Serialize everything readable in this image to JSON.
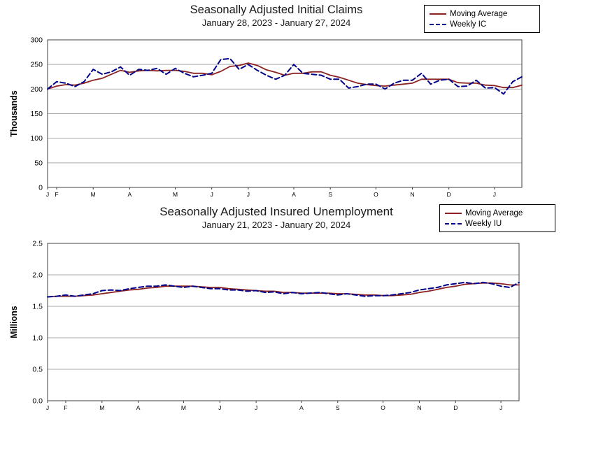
{
  "page": {
    "background": "#ffffff"
  },
  "chart_data": [
    {
      "type": "line",
      "title": "Seasonally Adjusted Initial Claims",
      "subtitle": "January 28, 2023 - January 27, 2024",
      "ylabel": "Thousands",
      "ylim": [
        0,
        300
      ],
      "yticks": [
        0,
        50,
        100,
        150,
        200,
        250,
        300
      ],
      "ytick_labels": [
        "0",
        "50",
        "100",
        "150",
        "200",
        "250",
        "300"
      ],
      "x_ticks": [
        {
          "label": "J",
          "week": 0
        },
        {
          "label": "F",
          "week": 1
        },
        {
          "label": "M",
          "week": 5
        },
        {
          "label": "A",
          "week": 9
        },
        {
          "label": "M",
          "week": 14
        },
        {
          "label": "J",
          "week": 18
        },
        {
          "label": "J",
          "week": 22
        },
        {
          "label": "A",
          "week": 27
        },
        {
          "label": "S",
          "week": 31
        },
        {
          "label": "O",
          "week": 36
        },
        {
          "label": "N",
          "week": 40
        },
        {
          "label": "D",
          "week": 44
        },
        {
          "label": "J",
          "week": 49
        }
      ],
      "grid": "horizontal",
      "legend_position": "top-right",
      "series": [
        {
          "name": "Moving Average",
          "color": "#8b2323",
          "style": "solid",
          "values": [
            200,
            206,
            209,
            208,
            212,
            218,
            222,
            230,
            238,
            234,
            237,
            238,
            237,
            238,
            238,
            236,
            232,
            232,
            229,
            236,
            246,
            248,
            253,
            248,
            239,
            234,
            228,
            232,
            232,
            235,
            235,
            228,
            224,
            218,
            212,
            209,
            207,
            206,
            208,
            210,
            212,
            220,
            220,
            220,
            220,
            213,
            212,
            212,
            208,
            207,
            203,
            203,
            208
          ]
        },
        {
          "name": "Weekly IC",
          "color": "#00008b",
          "style": "dashed",
          "values": [
            200,
            215,
            212,
            205,
            215,
            240,
            230,
            235,
            245,
            228,
            240,
            238,
            242,
            230,
            242,
            232,
            225,
            228,
            232,
            260,
            262,
            240,
            250,
            238,
            228,
            220,
            228,
            250,
            232,
            230,
            228,
            220,
            220,
            202,
            205,
            210,
            210,
            200,
            212,
            218,
            218,
            232,
            210,
            218,
            220,
            205,
            206,
            218,
            202,
            203,
            190,
            215,
            225
          ]
        }
      ]
    },
    {
      "type": "line",
      "title": "Seasonally Adjusted Insured Unemployment",
      "subtitle": "January 21, 2023 - January 20, 2024",
      "ylabel": "Millions",
      "ylim": [
        0,
        2.5
      ],
      "yticks": [
        0,
        0.5,
        1.0,
        1.5,
        2.0,
        2.5
      ],
      "ytick_labels": [
        "0.0",
        "0.5",
        "1.0",
        "1.5",
        "2.0",
        "2.5"
      ],
      "x_ticks": [
        {
          "label": "J",
          "week": 0
        },
        {
          "label": "F",
          "week": 2
        },
        {
          "label": "M",
          "week": 6
        },
        {
          "label": "A",
          "week": 10
        },
        {
          "label": "M",
          "week": 15
        },
        {
          "label": "J",
          "week": 19
        },
        {
          "label": "J",
          "week": 23
        },
        {
          "label": "A",
          "week": 28
        },
        {
          "label": "S",
          "week": 32
        },
        {
          "label": "O",
          "week": 37
        },
        {
          "label": "N",
          "week": 41
        },
        {
          "label": "D",
          "week": 45
        },
        {
          "label": "J",
          "week": 50
        }
      ],
      "grid": "horizontal",
      "legend_position": "top-right",
      "series": [
        {
          "name": "Moving Average",
          "color": "#8b2323",
          "style": "solid",
          "values": [
            1.65,
            1.66,
            1.66,
            1.66,
            1.67,
            1.68,
            1.7,
            1.72,
            1.74,
            1.76,
            1.77,
            1.79,
            1.8,
            1.82,
            1.82,
            1.82,
            1.82,
            1.81,
            1.8,
            1.8,
            1.78,
            1.77,
            1.76,
            1.75,
            1.74,
            1.74,
            1.72,
            1.72,
            1.71,
            1.71,
            1.71,
            1.71,
            1.7,
            1.7,
            1.69,
            1.68,
            1.68,
            1.67,
            1.67,
            1.68,
            1.69,
            1.72,
            1.74,
            1.77,
            1.8,
            1.82,
            1.85,
            1.86,
            1.87,
            1.87,
            1.86,
            1.84,
            1.84
          ]
        },
        {
          "name": "Weekly IU",
          "color": "#00008b",
          "style": "dashed",
          "values": [
            1.65,
            1.66,
            1.68,
            1.66,
            1.68,
            1.7,
            1.75,
            1.76,
            1.75,
            1.78,
            1.8,
            1.82,
            1.82,
            1.84,
            1.82,
            1.8,
            1.82,
            1.8,
            1.78,
            1.78,
            1.76,
            1.76,
            1.74,
            1.75,
            1.72,
            1.73,
            1.7,
            1.72,
            1.7,
            1.71,
            1.72,
            1.7,
            1.68,
            1.7,
            1.68,
            1.66,
            1.67,
            1.67,
            1.68,
            1.7,
            1.72,
            1.76,
            1.78,
            1.8,
            1.84,
            1.86,
            1.88,
            1.86,
            1.88,
            1.86,
            1.82,
            1.8,
            1.88
          ]
        }
      ],
      "colors": {
        "grid": "#aaaaaa",
        "axis": "#404040"
      }
    }
  ]
}
